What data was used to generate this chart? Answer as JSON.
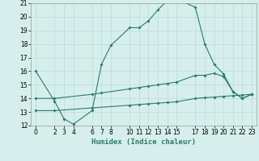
{
  "line1_x": [
    0,
    2,
    3,
    4,
    6,
    7,
    8,
    10,
    11,
    12,
    13,
    14,
    15,
    17,
    18,
    19,
    20,
    21,
    22,
    23
  ],
  "line1_y": [
    16.0,
    13.8,
    12.5,
    12.1,
    13.1,
    16.5,
    17.9,
    19.2,
    19.2,
    19.7,
    20.5,
    21.2,
    21.3,
    20.7,
    18.0,
    16.5,
    15.8,
    14.5,
    14.0,
    14.3
  ],
  "line2_x": [
    0,
    2,
    6,
    7,
    10,
    11,
    12,
    13,
    14,
    15,
    17,
    18,
    19,
    20,
    21,
    22,
    23
  ],
  "line2_y": [
    14.0,
    14.0,
    14.3,
    14.4,
    14.7,
    14.8,
    14.9,
    15.0,
    15.1,
    15.2,
    15.7,
    15.7,
    15.85,
    15.6,
    14.5,
    14.0,
    14.3
  ],
  "line3_x": [
    0,
    2,
    6,
    10,
    11,
    12,
    13,
    14,
    15,
    17,
    18,
    19,
    20,
    21,
    22,
    23
  ],
  "line3_y": [
    13.1,
    13.1,
    13.3,
    13.5,
    13.55,
    13.6,
    13.65,
    13.7,
    13.75,
    14.0,
    14.05,
    14.1,
    14.15,
    14.2,
    14.25,
    14.3
  ],
  "color": "#2a7a6a",
  "bg_color": "#d6efec",
  "grid_color": "#b8ddd9",
  "xlim": [
    -0.5,
    23.5
  ],
  "ylim": [
    12,
    21
  ],
  "yticks": [
    12,
    13,
    14,
    15,
    16,
    17,
    18,
    19,
    20,
    21
  ],
  "xticks": [
    0,
    2,
    3,
    4,
    6,
    7,
    8,
    10,
    11,
    12,
    13,
    14,
    15,
    17,
    18,
    19,
    20,
    21,
    22,
    23
  ],
  "xlabel": "Humidex (Indice chaleur)",
  "xlabel_fontsize": 6.5,
  "tick_fontsize": 5.5,
  "lw": 0.8,
  "ms": 2.0
}
